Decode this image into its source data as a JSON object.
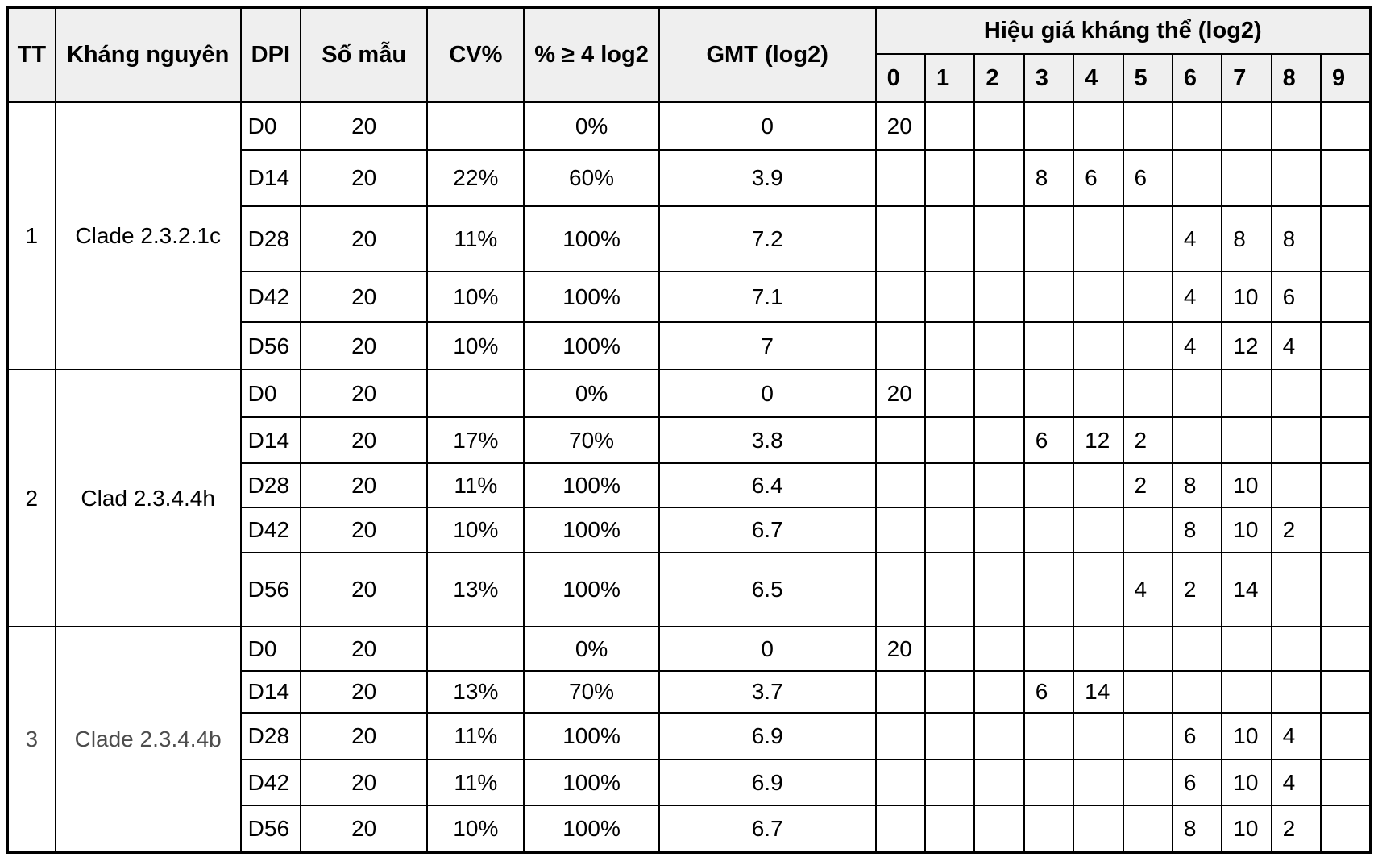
{
  "table": {
    "columns": {
      "tt": "TT",
      "antigen": "Kháng nguyên",
      "dpi": "DPI",
      "samples": "Số mẫu",
      "cv": "CV%",
      "pct4log2": "% ≥ 4 log2",
      "gmt": "GMT (log2)",
      "titer_group": "Hiệu giá kháng thể (log2)",
      "titer_cols": [
        "0",
        "1",
        "2",
        "3",
        "4",
        "5",
        "6",
        "7",
        "8",
        "9"
      ]
    },
    "colors": {
      "header_bg": "#efefef",
      "border": "#000000",
      "text_default": "#000000",
      "group3_label_text": "#4d4d4d"
    },
    "groups": [
      {
        "tt": "1",
        "antigen": "Clade 2.3.2.1c",
        "label_color": "#000000",
        "rows": [
          {
            "dpi": "D0",
            "samples": "20",
            "cv": "",
            "pct": "0%",
            "gmt": "0",
            "titers": [
              "20",
              "",
              "",
              "",
              "",
              "",
              "",
              "",
              "",
              ""
            ]
          },
          {
            "dpi": "D14",
            "samples": "20",
            "cv": "22%",
            "pct": "60%",
            "gmt": "3.9",
            "titers": [
              "",
              "",
              "",
              "8",
              "6",
              "6",
              "",
              "",
              "",
              ""
            ]
          },
          {
            "dpi": "D28",
            "samples": "20",
            "cv": "11%",
            "pct": "100%",
            "gmt": "7.2",
            "titers": [
              "",
              "",
              "",
              "",
              "",
              "",
              "4",
              "8",
              "8",
              ""
            ]
          },
          {
            "dpi": "D42",
            "samples": "20",
            "cv": "10%",
            "pct": "100%",
            "gmt": "7.1",
            "titers": [
              "",
              "",
              "",
              "",
              "",
              "",
              "4",
              "10",
              "6",
              ""
            ]
          },
          {
            "dpi": "D56",
            "samples": "20",
            "cv": "10%",
            "pct": "100%",
            "gmt": "7",
            "titers": [
              "",
              "",
              "",
              "",
              "",
              "",
              "4",
              "12",
              "4",
              ""
            ]
          }
        ]
      },
      {
        "tt": "2",
        "antigen": "Clad 2.3.4.4h",
        "label_color": "#000000",
        "rows": [
          {
            "dpi": "D0",
            "samples": "20",
            "cv": "",
            "pct": "0%",
            "gmt": "0",
            "titers": [
              "20",
              "",
              "",
              "",
              "",
              "",
              "",
              "",
              "",
              ""
            ]
          },
          {
            "dpi": "D14",
            "samples": "20",
            "cv": "17%",
            "pct": "70%",
            "gmt": "3.8",
            "titers": [
              "",
              "",
              "",
              "6",
              "12",
              "2",
              "",
              "",
              "",
              ""
            ]
          },
          {
            "dpi": "D28",
            "samples": "20",
            "cv": "11%",
            "pct": "100%",
            "gmt": "6.4",
            "titers": [
              "",
              "",
              "",
              "",
              "",
              "2",
              "8",
              "10",
              "",
              ""
            ]
          },
          {
            "dpi": "D42",
            "samples": "20",
            "cv": "10%",
            "pct": "100%",
            "gmt": "6.7",
            "titers": [
              "",
              "",
              "",
              "",
              "",
              "",
              "8",
              "10",
              "2",
              ""
            ]
          },
          {
            "dpi": "D56",
            "samples": "20",
            "cv": "13%",
            "pct": "100%",
            "gmt": "6.5",
            "titers": [
              "",
              "",
              "",
              "",
              "",
              "4",
              "2",
              "14",
              "",
              ""
            ]
          }
        ]
      },
      {
        "tt": "3",
        "antigen": "Clade 2.3.4.4b",
        "label_color": "#4d4d4d",
        "rows": [
          {
            "dpi": "D0",
            "samples": "20",
            "cv": "",
            "pct": "0%",
            "gmt": "0",
            "titers": [
              "20",
              "",
              "",
              "",
              "",
              "",
              "",
              "",
              "",
              ""
            ]
          },
          {
            "dpi": "D14",
            "samples": "20",
            "cv": "13%",
            "pct": "70%",
            "gmt": "3.7",
            "titers": [
              "",
              "",
              "",
              "6",
              "14",
              "",
              "",
              "",
              "",
              ""
            ]
          },
          {
            "dpi": "D28",
            "samples": "20",
            "cv": "11%",
            "pct": "100%",
            "gmt": "6.9",
            "titers": [
              "",
              "",
              "",
              "",
              "",
              "",
              "6",
              "10",
              "4",
              ""
            ]
          },
          {
            "dpi": "D42",
            "samples": "20",
            "cv": "11%",
            "pct": "100%",
            "gmt": "6.9",
            "titers": [
              "",
              "",
              "",
              "",
              "",
              "",
              "6",
              "10",
              "4",
              ""
            ]
          },
          {
            "dpi": "D56",
            "samples": "20",
            "cv": "10%",
            "pct": "100%",
            "gmt": "6.7",
            "titers": [
              "",
              "",
              "",
              "",
              "",
              "",
              "8",
              "10",
              "2",
              ""
            ]
          }
        ]
      }
    ]
  }
}
